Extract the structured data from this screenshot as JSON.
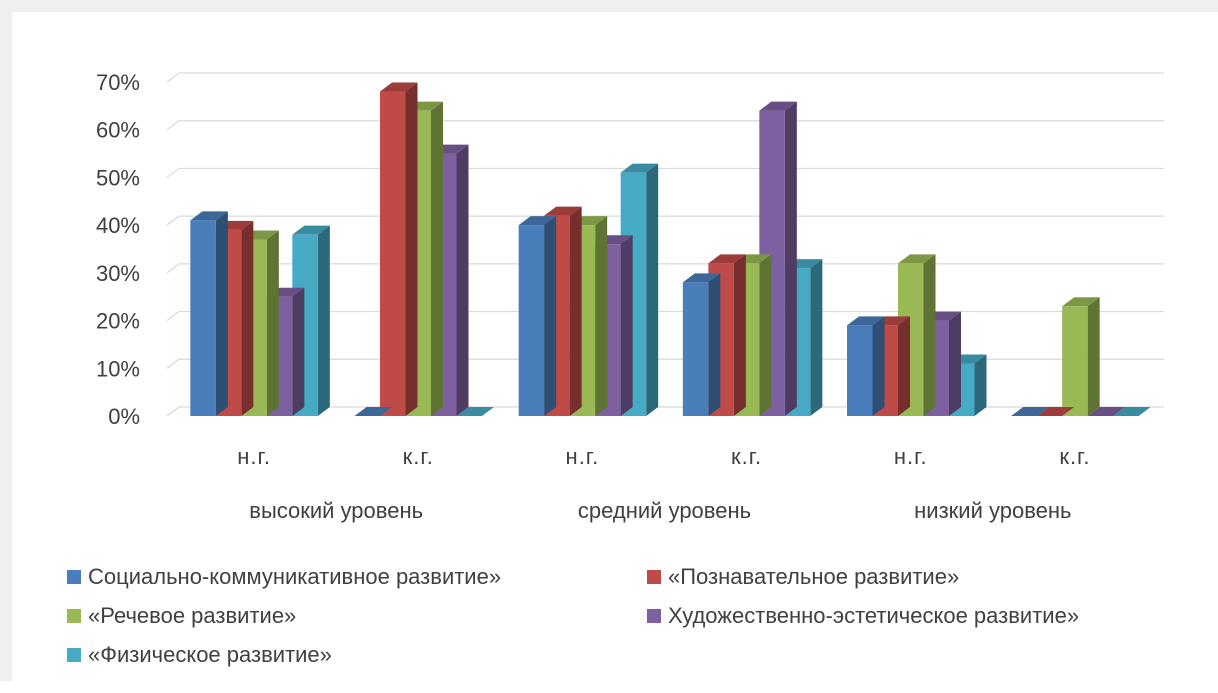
{
  "chart_data": {
    "type": "bar",
    "style": "3d-clustered-column",
    "y_ticks": [
      "0%",
      "10%",
      "20%",
      "30%",
      "40%",
      "50%",
      "60%",
      "70%"
    ],
    "ylim": [
      0,
      70
    ],
    "grid": true,
    "legend_position": "bottom",
    "categories": [
      "н.г.",
      "к.г.",
      "н.г.",
      "к.г.",
      "н.г.",
      "к.г."
    ],
    "groups": [
      "высокий уровень",
      "средний уровень",
      "низкий уровень"
    ],
    "series": [
      {
        "name": "Социально-коммуникативное развитие»",
        "color": "#4a7ebb",
        "values": [
          41,
          0,
          40,
          28,
          19,
          0
        ]
      },
      {
        "name": "«Познавательное развитие»",
        "color": "#be4b48",
        "values": [
          39,
          68,
          42,
          32,
          19,
          0
        ]
      },
      {
        "name": "«Речевое развитие»",
        "color": "#98b954",
        "values": [
          37,
          64,
          40,
          32,
          32,
          23
        ]
      },
      {
        "name": "Художественно-эстетическое развитие»",
        "color": "#7d60a0",
        "values": [
          25,
          55,
          36,
          64,
          20,
          0
        ]
      },
      {
        "name": "«Физическое развитие»",
        "color": "#46aac5",
        "values": [
          38,
          0,
          51,
          31,
          11,
          0
        ]
      }
    ]
  }
}
